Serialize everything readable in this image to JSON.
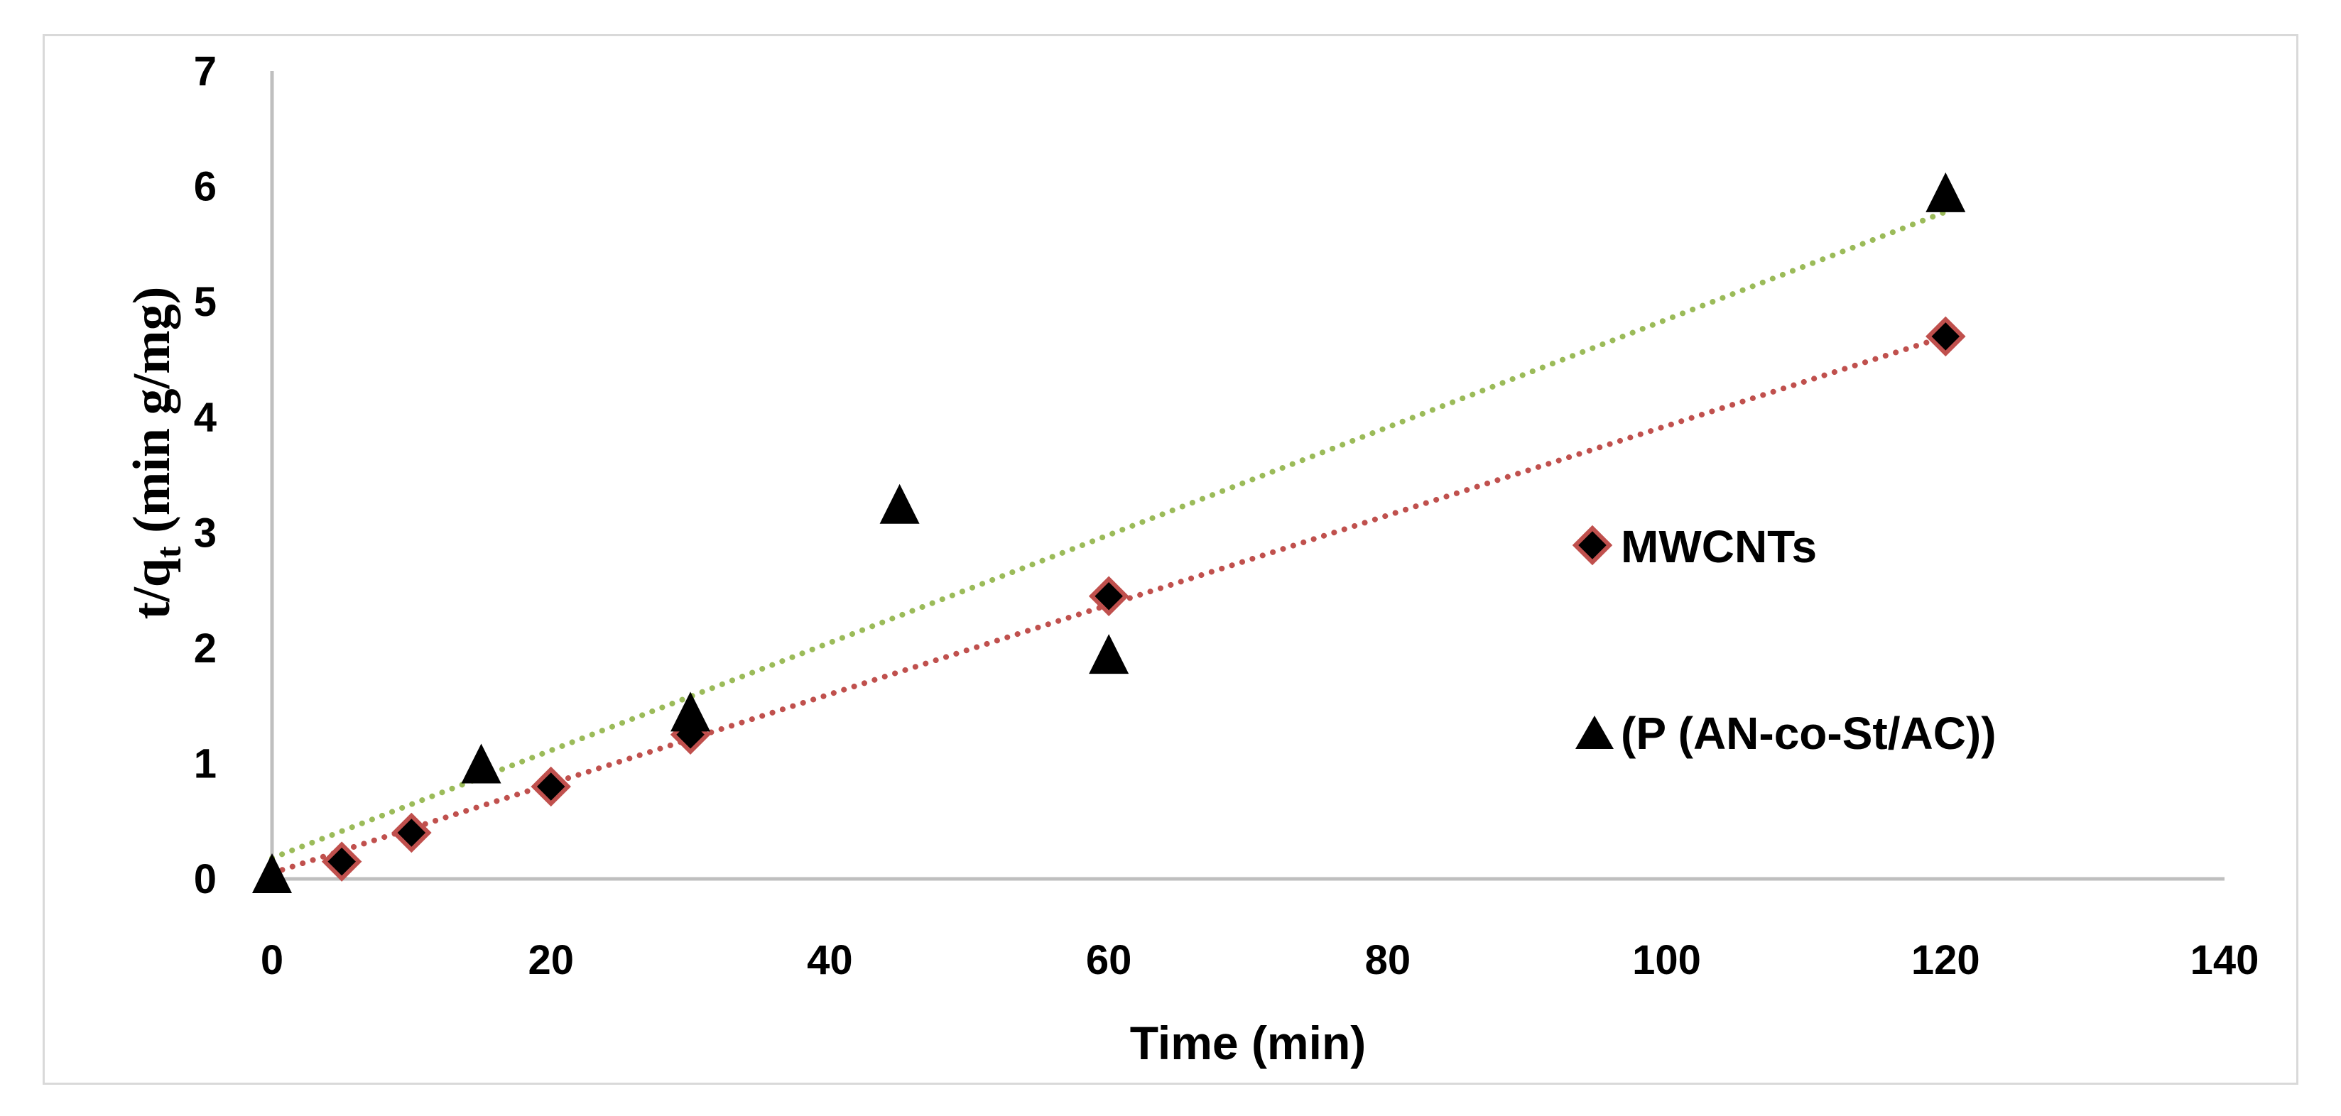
{
  "chart_data": {
    "type": "scatter",
    "title": "",
    "xlabel": "Time (min)",
    "ylabel_main": "t/q",
    "ylabel_sub": "t",
    "ylabel_tail": " (min g/mg)",
    "xlim": [
      0,
      140
    ],
    "ylim": [
      0,
      7
    ],
    "xticks": [
      "0",
      "20",
      "40",
      "60",
      "80",
      "100",
      "120",
      "140"
    ],
    "yticks": [
      "0",
      "1",
      "2",
      "3",
      "4",
      "5",
      "6",
      "7"
    ],
    "grid": false,
    "legend_position": "right",
    "series": [
      {
        "name": "MWCNTs",
        "marker": "diamond",
        "marker_color": "#000000",
        "marker_edge": "#c0504d",
        "trend_color": "#c0504d",
        "trendline": {
          "type": "linear",
          "x": [
            0,
            120
          ],
          "y": [
            0.05,
            4.7
          ]
        },
        "points": [
          {
            "x": 5,
            "y": 0.15
          },
          {
            "x": 10,
            "y": 0.4
          },
          {
            "x": 20,
            "y": 0.8
          },
          {
            "x": 30,
            "y": 1.25
          },
          {
            "x": 60,
            "y": 2.45
          },
          {
            "x": 120,
            "y": 4.7
          }
        ]
      },
      {
        "name": "(P (AN-co-St/AC))",
        "marker": "triangle",
        "marker_color": "#000000",
        "trend_color": "#9bbb59",
        "trendline": {
          "type": "linear",
          "x": [
            0,
            120
          ],
          "y": [
            0.18,
            5.78
          ]
        },
        "points": [
          {
            "x": 0,
            "y": 0.0
          },
          {
            "x": 15,
            "y": 0.95
          },
          {
            "x": 30,
            "y": 1.4
          },
          {
            "x": 45,
            "y": 3.2
          },
          {
            "x": 60,
            "y": 1.9
          },
          {
            "x": 120,
            "y": 5.9
          }
        ]
      }
    ]
  },
  "colors": {
    "axis": "#bfbfbf",
    "frame": "#d9d9d9"
  }
}
